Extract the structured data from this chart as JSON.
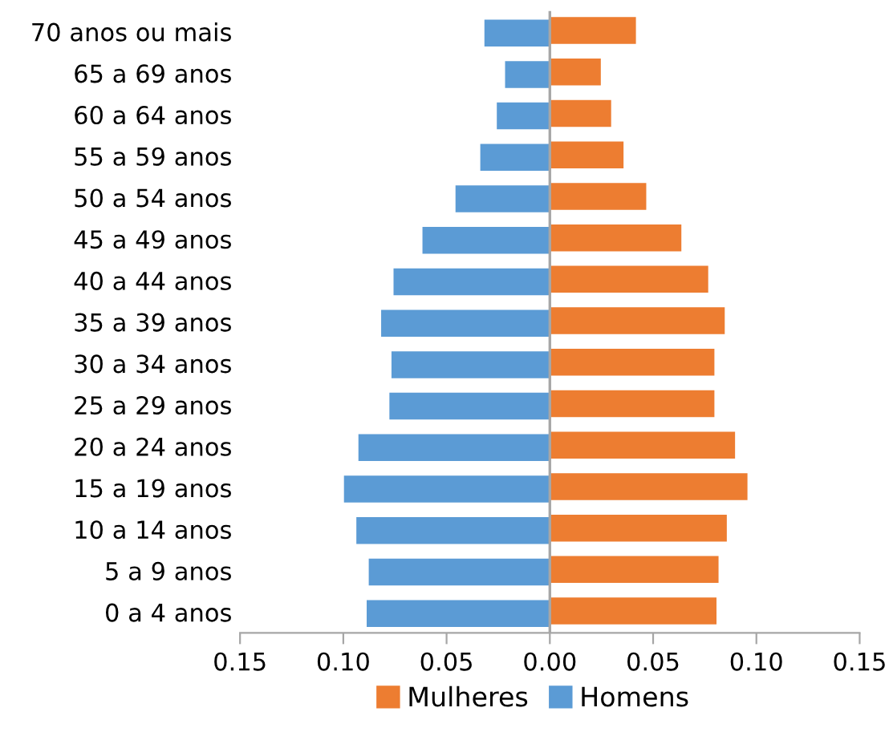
{
  "chart_data": {
    "type": "bar",
    "orientation": "horizontal",
    "categories": [
      "70 anos ou mais",
      "65 a 69 anos",
      "60 a 64 anos",
      "55 a 59 anos",
      "50 a 54 anos",
      "45 a 49 anos",
      "40 a 44 anos",
      "35 a 39 anos",
      "30 a 34 anos",
      "25 a 29 anos",
      "20 a 24 anos",
      "15 a 19 anos",
      "10 a 14 anos",
      "5 a 9 anos",
      "0 a 4 anos"
    ],
    "series": [
      {
        "name": "Mulheres",
        "color": "#ed7d31",
        "values": [
          0.042,
          0.025,
          0.03,
          0.036,
          0.047,
          0.064,
          0.077,
          0.085,
          0.08,
          0.08,
          0.09,
          0.096,
          0.086,
          0.082,
          0.081
        ]
      },
      {
        "name": "Homens",
        "color": "#5b9bd5",
        "values": [
          -0.032,
          -0.022,
          -0.026,
          -0.034,
          -0.046,
          -0.062,
          -0.076,
          -0.082,
          -0.077,
          -0.078,
          -0.093,
          -0.1,
          -0.094,
          -0.088,
          -0.089
        ]
      }
    ],
    "xlim": [
      -0.15,
      0.15
    ],
    "xticks": [
      {
        "value": -0.15,
        "label": "0.15"
      },
      {
        "value": -0.1,
        "label": "0.10"
      },
      {
        "value": -0.05,
        "label": "0.05"
      },
      {
        "value": 0,
        "label": "0.00"
      },
      {
        "value": 0.05,
        "label": "0.05"
      },
      {
        "value": 0.1,
        "label": "0.10"
      },
      {
        "value": 0.15,
        "label": "0.15"
      }
    ],
    "legend": "bottom"
  }
}
